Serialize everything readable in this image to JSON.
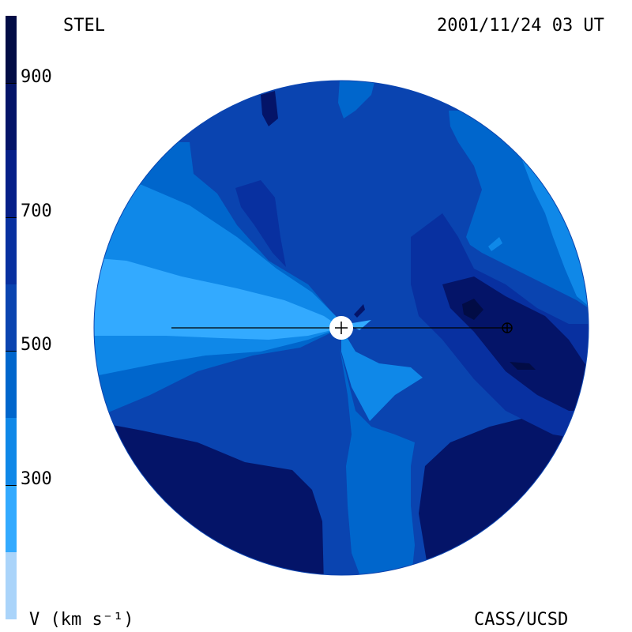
{
  "header": {
    "left_title": "STEL",
    "right_title": "2001/11/24 03 UT"
  },
  "footer": {
    "left_label": "V (km s⁻¹)",
    "right_label": "CASS/UCSD"
  },
  "colorbar": {
    "tick_labels": [
      "900",
      "700",
      "500",
      "300"
    ],
    "tick_values": [
      900,
      700,
      500,
      300
    ],
    "range": [
      100,
      1000
    ],
    "level_step": 100,
    "colors": [
      "#aad4fa",
      "#33aaff",
      "#0f88e8",
      "#0066cc",
      "#0a44b0",
      "#0830a0",
      "#061f88",
      "#041468",
      "#020c45"
    ]
  },
  "map": {
    "center_marker": "sun-marker",
    "earth_marker": "earth-marker",
    "region_colors": {
      "level_300": "#33aaff",
      "level_400": "#0f88e8",
      "level_500": "#0066cc",
      "level_600": "#0a44b0",
      "level_700": "#0830a0",
      "level_800": "#041468",
      "level_900": "#020c45"
    }
  }
}
